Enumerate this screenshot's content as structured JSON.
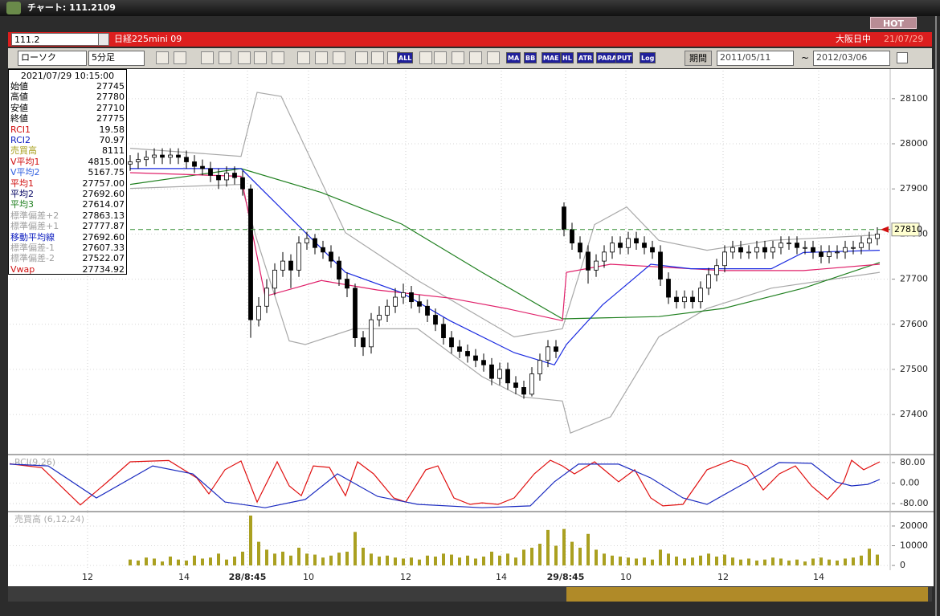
{
  "window": {
    "title": "チャート: 111.2109",
    "hot": "HOT"
  },
  "header": {
    "code": "111.2",
    "name": "日経225mini 09",
    "session": "大阪日中",
    "date": "21/07/29"
  },
  "toolbar": {
    "chart_kind": "ローソク",
    "interval": "5分足",
    "buttons": [
      "ALL",
      "MA",
      "BB",
      "MAE",
      "HL",
      "ATR",
      "PARA",
      "PUT",
      "Log"
    ],
    "period_label": "期間",
    "from": "2011/05/11",
    "separator": "~",
    "to": "2012/03/06"
  },
  "info_panel": {
    "datetime": "2021/07/29  10:15:00",
    "rows": [
      {
        "label": "始値",
        "value": "27745",
        "color": "#000000"
      },
      {
        "label": "高値",
        "value": "27780",
        "color": "#000000"
      },
      {
        "label": "安値",
        "value": "27710",
        "color": "#000000"
      },
      {
        "label": "終値",
        "value": "27775",
        "color": "#000000"
      },
      {
        "label": "RCI1",
        "value": "19.58",
        "color": "#d01010"
      },
      {
        "label": "RCI2",
        "value": "70.97",
        "color": "#1020c0"
      },
      {
        "label": "売買高",
        "value": "8111",
        "color": "#a8a020"
      },
      {
        "label": "V平均1",
        "value": "4815.00",
        "color": "#d01010"
      },
      {
        "label": "V平均2",
        "value": "5167.75",
        "color": "#3060e0"
      },
      {
        "label": "平均1",
        "value": "27757.00",
        "color": "#d01010"
      },
      {
        "label": "平均2",
        "value": "27692.60",
        "color": "#000060"
      },
      {
        "label": "平均3",
        "value": "27614.07",
        "color": "#208020"
      },
      {
        "label": "標準偏差+2",
        "value": "27863.13",
        "color": "#a0a0a0"
      },
      {
        "label": "標準偏差+1",
        "value": "27777.87",
        "color": "#a0a0a0"
      },
      {
        "label": "移動平均線",
        "value": "27692.60",
        "color": "#1020c0"
      },
      {
        "label": "標準偏差-1",
        "value": "27607.33",
        "color": "#a0a0a0"
      },
      {
        "label": "標準偏差-2",
        "value": "27522.07",
        "color": "#a0a0a0"
      },
      {
        "label": "Vwap",
        "value": "27734.92",
        "color": "#d01010"
      }
    ]
  },
  "chart_data": [
    {
      "type": "candlestick",
      "xlim": [
        -15,
        94.6
      ],
      "xticks": [
        {
          "value": -5.3,
          "label": "12"
        },
        {
          "value": 6.7,
          "label": "14"
        },
        {
          "value": 14.6,
          "label": "28/8:45"
        },
        {
          "value": 22.2,
          "label": "10"
        },
        {
          "value": 34.3,
          "label": "12"
        },
        {
          "value": 46.2,
          "label": "14"
        },
        {
          "value": 54.2,
          "label": "29/8:45"
        },
        {
          "value": 61.7,
          "label": "10"
        },
        {
          "value": 73.8,
          "label": "12"
        },
        {
          "value": 85.7,
          "label": "14"
        }
      ],
      "ylim": [
        27313,
        28162
      ],
      "yticks": [
        27400,
        27500,
        27600,
        27700,
        27800,
        27900,
        28000,
        28100
      ],
      "grid": true,
      "open": [
        27955,
        27960,
        27965,
        27970,
        27975,
        27970,
        27975,
        27970,
        27960,
        27950,
        27945,
        27930,
        27920,
        27935,
        27925,
        27900,
        27610,
        27640,
        27680,
        27720,
        27740,
        27720,
        27780,
        27790,
        27770,
        27760,
        27740,
        27700,
        27680,
        27570,
        27550,
        27610,
        27620,
        27640,
        27660,
        27670,
        27650,
        27640,
        27620,
        27600,
        27570,
        27550,
        27540,
        27530,
        27520,
        27510,
        27480,
        27500,
        27470,
        27460,
        27445,
        27490,
        27520,
        27550,
        27860,
        27810,
        27780,
        27760,
        27720,
        27740,
        27760,
        27780,
        27770,
        27790,
        27780,
        27770,
        27760,
        27700,
        27660,
        27650,
        27660,
        27650,
        27680,
        27710,
        27730,
        27760,
        27770,
        27760,
        27760,
        27770,
        27760,
        27770,
        27780,
        27780,
        27770,
        27770,
        27760,
        27750,
        27760,
        27760,
        27770,
        27770,
        27780,
        27790
      ],
      "high": [
        27975,
        27980,
        27985,
        27990,
        27990,
        27990,
        27990,
        27985,
        27975,
        27965,
        27960,
        27945,
        27950,
        27950,
        27940,
        27910,
        27660,
        27700,
        27735,
        27760,
        27755,
        27795,
        27805,
        27800,
        27785,
        27775,
        27750,
        27715,
        27690,
        27585,
        27625,
        27640,
        27655,
        27680,
        27690,
        27685,
        27665,
        27655,
        27635,
        27615,
        27585,
        27565,
        27555,
        27545,
        27535,
        27525,
        27515,
        27515,
        27485,
        27475,
        27505,
        27535,
        27565,
        27565,
        27870,
        27825,
        27795,
        27775,
        27755,
        27775,
        27795,
        27795,
        27805,
        27805,
        27795,
        27785,
        27775,
        27715,
        27675,
        27675,
        27675,
        27695,
        27725,
        27745,
        27775,
        27785,
        27785,
        27775,
        27785,
        27785,
        27785,
        27795,
        27795,
        27795,
        27785,
        27785,
        27775,
        27775,
        27775,
        27785,
        27785,
        27795,
        27805,
        27815
      ],
      "low": [
        27940,
        27945,
        27950,
        27955,
        27955,
        27955,
        27955,
        27945,
        27935,
        27930,
        27915,
        27900,
        27905,
        27910,
        27885,
        27570,
        27595,
        27625,
        27665,
        27705,
        27680,
        27705,
        27765,
        27755,
        27745,
        27725,
        27685,
        27660,
        27550,
        27530,
        27535,
        27595,
        27605,
        27625,
        27645,
        27635,
        27625,
        27605,
        27585,
        27555,
        27535,
        27525,
        27515,
        27505,
        27495,
        27465,
        27465,
        27455,
        27445,
        27435,
        27440,
        27475,
        27505,
        27525,
        27795,
        27765,
        27745,
        27690,
        27705,
        27725,
        27745,
        27755,
        27755,
        27765,
        27755,
        27745,
        27685,
        27645,
        27635,
        27635,
        27635,
        27635,
        27665,
        27695,
        27715,
        27745,
        27745,
        27745,
        27745,
        27745,
        27745,
        27755,
        27765,
        27755,
        27755,
        27745,
        27735,
        27735,
        27745,
        27745,
        27755,
        27755,
        27765,
        27775
      ],
      "close": [
        27960,
        27965,
        27970,
        27975,
        27970,
        27975,
        27970,
        27960,
        27950,
        27945,
        27930,
        27920,
        27935,
        27925,
        27900,
        27610,
        27640,
        27680,
        27720,
        27740,
        27720,
        27780,
        27790,
        27770,
        27760,
        27740,
        27700,
        27680,
        27570,
        27550,
        27610,
        27620,
        27640,
        27660,
        27670,
        27650,
        27640,
        27620,
        27600,
        27570,
        27550,
        27540,
        27530,
        27520,
        27510,
        27480,
        27500,
        27470,
        27460,
        27445,
        27490,
        27520,
        27550,
        27540,
        27810,
        27780,
        27760,
        27720,
        27740,
        27760,
        27780,
        27770,
        27790,
        27780,
        27770,
        27760,
        27700,
        27660,
        27650,
        27660,
        27650,
        27680,
        27710,
        27730,
        27760,
        27770,
        27760,
        27760,
        27770,
        27760,
        27770,
        27780,
        27780,
        27770,
        27770,
        27760,
        27750,
        27760,
        27760,
        27770,
        27770,
        27780,
        27790,
        27800
      ],
      "up_color": "#ffffff",
      "down_color": "#000000",
      "overlays": [
        {
          "color": "#a8a8a8",
          "x": [
            0,
            13.8,
            15.8,
            18.8,
            26.8,
            35.8,
            47.8,
            53.8,
            57.8,
            61.8,
            65.8,
            71.8,
            79.8,
            93.3
          ],
          "values": [
            27990,
            27972,
            28114,
            28105,
            27803,
            27697,
            27572,
            27590,
            27821,
            27860,
            27786,
            27764,
            27786,
            27798
          ]
        },
        {
          "color": "#a8a8a8",
          "x": [
            0,
            13.8,
            15.8,
            19.8,
            21.8,
            27.8,
            35.8,
            43.8,
            48.8,
            53.8,
            54.8,
            59.8,
            65.8,
            71.8,
            79.8,
            93.3
          ],
          "values": [
            27901,
            27910,
            27786,
            27563,
            27555,
            27590,
            27590,
            27484,
            27439,
            27430,
            27359,
            27395,
            27572,
            27635,
            27680,
            27715
          ]
        },
        {
          "color": "#208020",
          "x": [
            0,
            13.8,
            23.8,
            33.8,
            43.8,
            53.8,
            65.8,
            73.8,
            83.8,
            93.3
          ],
          "values": [
            27910,
            27945,
            27892,
            27822,
            27715,
            27612,
            27617,
            27635,
            27680,
            27737
          ]
        },
        {
          "color": "#e0206a",
          "x": [
            0,
            13.8,
            16.8,
            23.8,
            30.8,
            39.8,
            46.8,
            53.8,
            54.3,
            59.8,
            73.8,
            83.8,
            93.3
          ],
          "values": [
            27936,
            27928,
            27662,
            27697,
            27676,
            27658,
            27635,
            27608,
            27715,
            27733,
            27719,
            27719,
            27733
          ]
        },
        {
          "color": "#1a2ae0",
          "x": [
            0,
            13.8,
            22.8,
            26.8,
            33.8,
            39.8,
            47.8,
            52.8,
            54.3,
            58.8,
            64.8,
            69.8,
            79.8,
            83.8,
            93.3
          ],
          "values": [
            27945,
            27945,
            27786,
            27715,
            27670,
            27608,
            27537,
            27510,
            27555,
            27643,
            27733,
            27723,
            27723,
            27759,
            27764
          ]
        }
      ],
      "price_line": 27810,
      "price_line_color": "#2e8b2e"
    },
    {
      "type": "line",
      "title": "RCI(9,26)",
      "xlim": [
        -15,
        94.6
      ],
      "ylim": [
        -108,
        108
      ],
      "yticks": [
        {
          "value": 80,
          "label": "80.00"
        },
        {
          "value": 0,
          "label": "0.00"
        },
        {
          "value": -80,
          "label": "-80.00"
        }
      ],
      "grid": true,
      "series": [
        {
          "color": "#e01010",
          "x": [
            -15,
            -11,
            -6.2,
            -3,
            0,
            4.8,
            8.3,
            9.8,
            11.8,
            13.8,
            15.8,
            18.3,
            19.8,
            21.3,
            22.8,
            24.8,
            26.8,
            28.3,
            30.3,
            32.8,
            34.3,
            36.8,
            38.3,
            40.3,
            42.3,
            43.8,
            45.8,
            47.8,
            50.3,
            52.3,
            53.8,
            55.3,
            57.8,
            60.8,
            62.8,
            64.8,
            66.3,
            68.8,
            71.8,
            74.8,
            76.8,
            78.8,
            80.8,
            82.8,
            84.8,
            86.8,
            88.8,
            89.8,
            91.3,
            93.3
          ],
          "values": [
            75,
            60,
            -85,
            0,
            83,
            88,
            20,
            -42,
            52,
            86,
            -74,
            83,
            -11,
            -49,
            67,
            61,
            -49,
            83,
            36,
            -58,
            -74,
            52,
            67,
            -58,
            -83,
            -77,
            -83,
            -58,
            36,
            89,
            67,
            36,
            83,
            5,
            52,
            -58,
            -89,
            -83,
            52,
            89,
            67,
            -27,
            36,
            67,
            -11,
            -64,
            5,
            89,
            52,
            83
          ]
        },
        {
          "color": "#1a2ac0",
          "x": [
            -15,
            -10.2,
            -4.2,
            2.8,
            7.8,
            11.8,
            16.8,
            21.8,
            25.8,
            30.8,
            35.8,
            43.8,
            49.8,
            52.8,
            55.8,
            60.8,
            64.8,
            68.8,
            71.8,
            76.8,
            80.8,
            84.8,
            87.8,
            89.8,
            91.8,
            93.3
          ],
          "values": [
            74,
            67,
            -58,
            67,
            36,
            -74,
            -96,
            -64,
            36,
            -52,
            -83,
            -96,
            -89,
            5,
            74,
            74,
            20,
            -58,
            -83,
            5,
            80,
            77,
            5,
            -11,
            -5,
            14
          ]
        }
      ]
    },
    {
      "type": "bar",
      "title": "売買高 (6,12,24)",
      "xlim": [
        -15,
        94.6
      ],
      "ylim": [
        -1600,
        26900
      ],
      "yticks": [
        0,
        10000,
        20000
      ],
      "grid": true,
      "color": "#aaa020",
      "values": [
        3000,
        2500,
        4000,
        3500,
        2000,
        4500,
        3000,
        2500,
        5000,
        3500,
        4000,
        6000,
        3000,
        4500,
        7000,
        25300,
        12000,
        8000,
        6000,
        7000,
        5000,
        9000,
        6000,
        5500,
        4000,
        5000,
        6500,
        7000,
        17000,
        9000,
        6000,
        4500,
        5000,
        4000,
        3500,
        4000,
        3000,
        5000,
        4500,
        6000,
        5500,
        4000,
        5000,
        3500,
        4500,
        7000,
        5000,
        6000,
        4000,
        8000,
        9000,
        11000,
        18000,
        10000,
        18500,
        12000,
        9000,
        16000,
        8000,
        6000,
        5000,
        4500,
        4000,
        3500,
        4000,
        3000,
        8000,
        6000,
        4500,
        3500,
        4000,
        5000,
        6000,
        4500,
        5500,
        4000,
        3000,
        3500,
        2500,
        3000,
        4000,
        3500,
        2500,
        3000,
        2000,
        3500,
        4000,
        3000,
        2500,
        3500,
        4000,
        5000,
        8500,
        5500
      ]
    }
  ]
}
